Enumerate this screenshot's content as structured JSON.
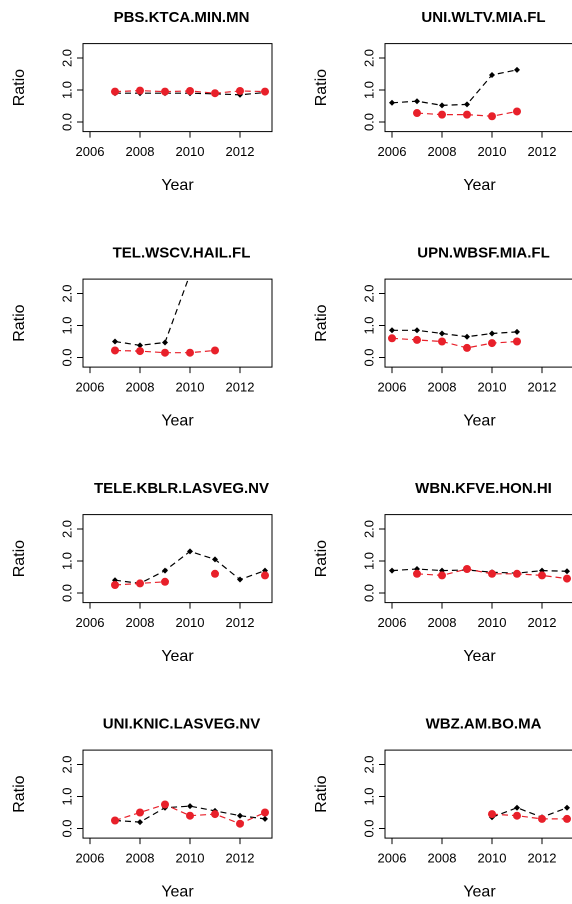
{
  "chart_data": [
    {
      "type": "line",
      "title": "PBS.KTCA.MIN.MN",
      "x_label": "Year",
      "y_label": "Ratio",
      "x": [
        2006,
        2007,
        2008,
        2009,
        2010,
        2011,
        2012,
        2013
      ],
      "series": [
        {
          "color": "#000000",
          "values": [
            null,
            0.9,
            0.9,
            0.9,
            0.9,
            0.88,
            0.85,
            0.92
          ]
        },
        {
          "color": "#e8202a",
          "values": [
            null,
            0.95,
            0.98,
            0.95,
            0.97,
            0.9,
            0.97,
            0.95
          ]
        }
      ],
      "xlim": [
        2005.72,
        2013.28
      ],
      "ylim": [
        -0.3,
        2.45
      ],
      "xticks": [
        2006,
        2008,
        2010,
        2012
      ],
      "yticks": [
        {
          "value": 0,
          "label": "0.0"
        },
        {
          "value": 1,
          "label": "1.0"
        },
        {
          "value": 2,
          "label": "2.0"
        }
      ]
    },
    {
      "type": "line",
      "title": "UNI.WLTV.MIA.FL",
      "x_label": "Year",
      "y_label": "Ratio",
      "x": [
        2006,
        2007,
        2008,
        2009,
        2010,
        2011,
        2012,
        2013
      ],
      "series": [
        {
          "color": "#000000",
          "values": [
            0.6,
            0.65,
            0.52,
            0.55,
            1.47,
            1.63,
            null,
            null
          ]
        },
        {
          "color": "#e8202a",
          "values": [
            null,
            0.28,
            0.23,
            0.23,
            0.18,
            0.33,
            null,
            null
          ]
        }
      ],
      "xlim": [
        2005.72,
        2013.28
      ],
      "ylim": [
        -0.3,
        2.45
      ],
      "xticks": [
        2006,
        2008,
        2010,
        2012
      ],
      "yticks": [
        {
          "value": 0,
          "label": "0.0"
        },
        {
          "value": 1,
          "label": "1.0"
        },
        {
          "value": 2,
          "label": "2.0"
        }
      ]
    },
    {
      "type": "line",
      "title": "TEL.WSCV.HAIL.FL",
      "x_label": "Year",
      "y_label": "Ratio",
      "x": [
        2006,
        2007,
        2008,
        2009,
        2010,
        2011,
        2012,
        2013
      ],
      "series": [
        {
          "color": "#000000",
          "values": [
            null,
            0.5,
            0.38,
            0.47,
            2.6,
            null,
            null,
            null
          ]
        },
        {
          "color": "#e8202a",
          "values": [
            null,
            0.22,
            0.2,
            0.15,
            0.15,
            0.22,
            null,
            null
          ]
        }
      ],
      "xlim": [
        2005.72,
        2013.28
      ],
      "ylim": [
        -0.3,
        2.45
      ],
      "xticks": [
        2006,
        2008,
        2010,
        2012
      ],
      "yticks": [
        {
          "value": 0,
          "label": "0.0"
        },
        {
          "value": 1,
          "label": "1.0"
        },
        {
          "value": 2,
          "label": "2.0"
        }
      ]
    },
    {
      "type": "line",
      "title": "UPN.WBSF.MIA.FL",
      "x_label": "Year",
      "y_label": "Ratio",
      "x": [
        2006,
        2007,
        2008,
        2009,
        2010,
        2011,
        2012,
        2013
      ],
      "series": [
        {
          "color": "#000000",
          "values": [
            0.85,
            0.85,
            0.75,
            0.65,
            0.75,
            0.8,
            null,
            null
          ]
        },
        {
          "color": "#e8202a",
          "values": [
            0.6,
            0.55,
            0.5,
            0.3,
            0.45,
            0.5,
            null,
            null
          ]
        }
      ],
      "xlim": [
        2005.72,
        2013.28
      ],
      "ylim": [
        -0.3,
        2.45
      ],
      "xticks": [
        2006,
        2008,
        2010,
        2012
      ],
      "yticks": [
        {
          "value": 0,
          "label": "0.0"
        },
        {
          "value": 1,
          "label": "1.0"
        },
        {
          "value": 2,
          "label": "2.0"
        }
      ]
    },
    {
      "type": "line",
      "title": "TELE.KBLR.LASVEG.NV",
      "x_label": "Year",
      "y_label": "Ratio",
      "x": [
        2006,
        2007,
        2008,
        2009,
        2010,
        2011,
        2012,
        2013
      ],
      "series": [
        {
          "color": "#000000",
          "values": [
            null,
            0.4,
            0.3,
            0.7,
            1.3,
            1.05,
            0.42,
            0.7
          ]
        },
        {
          "color": "#e8202a",
          "values": [
            null,
            0.25,
            0.3,
            0.35,
            null,
            0.6,
            null,
            0.55
          ]
        }
      ],
      "xlim": [
        2005.72,
        2013.28
      ],
      "ylim": [
        -0.3,
        2.45
      ],
      "xticks": [
        2006,
        2008,
        2010,
        2012
      ],
      "yticks": [
        {
          "value": 0,
          "label": "0.0"
        },
        {
          "value": 1,
          "label": "1.0"
        },
        {
          "value": 2,
          "label": "2.0"
        }
      ]
    },
    {
      "type": "line",
      "title": "WBN.KFVE.HON.HI",
      "x_label": "Year",
      "y_label": "Ratio",
      "x": [
        2006,
        2007,
        2008,
        2009,
        2010,
        2011,
        2012,
        2013
      ],
      "series": [
        {
          "color": "#000000",
          "values": [
            0.7,
            0.75,
            0.7,
            0.72,
            0.65,
            0.62,
            0.7,
            0.68
          ]
        },
        {
          "color": "#e8202a",
          "values": [
            null,
            0.6,
            0.55,
            0.75,
            0.6,
            0.6,
            0.55,
            0.45
          ]
        }
      ],
      "xlim": [
        2005.72,
        2013.28
      ],
      "ylim": [
        -0.3,
        2.45
      ],
      "xticks": [
        2006,
        2008,
        2010,
        2012
      ],
      "yticks": [
        {
          "value": 0,
          "label": "0.0"
        },
        {
          "value": 1,
          "label": "1.0"
        },
        {
          "value": 2,
          "label": "2.0"
        }
      ]
    },
    {
      "type": "line",
      "title": "UNI.KNIC.LASVEG.NV",
      "x_label": "Year",
      "y_label": "Ratio",
      "x": [
        2006,
        2007,
        2008,
        2009,
        2010,
        2011,
        2012,
        2013
      ],
      "series": [
        {
          "color": "#000000",
          "values": [
            null,
            0.25,
            0.2,
            0.65,
            0.7,
            0.55,
            0.4,
            0.3
          ]
        },
        {
          "color": "#e8202a",
          "values": [
            null,
            0.25,
            0.5,
            0.75,
            0.4,
            0.45,
            0.15,
            0.5
          ]
        }
      ],
      "xlim": [
        2005.72,
        2013.28
      ],
      "ylim": [
        -0.3,
        2.45
      ],
      "xticks": [
        2006,
        2008,
        2010,
        2012
      ],
      "yticks": [
        {
          "value": 0,
          "label": "0.0"
        },
        {
          "value": 1,
          "label": "1.0"
        },
        {
          "value": 2,
          "label": "2.0"
        }
      ]
    },
    {
      "type": "line",
      "title": "WBZ.AM.BO.MA",
      "x_label": "Year",
      "y_label": "Ratio",
      "x": [
        2006,
        2007,
        2008,
        2009,
        2010,
        2011,
        2012,
        2013
      ],
      "series": [
        {
          "color": "#000000",
          "values": [
            null,
            null,
            null,
            null,
            0.35,
            0.65,
            0.35,
            0.65
          ]
        },
        {
          "color": "#e8202a",
          "values": [
            null,
            null,
            null,
            null,
            0.45,
            0.4,
            0.3,
            0.3
          ]
        }
      ],
      "xlim": [
        2005.72,
        2013.28
      ],
      "ylim": [
        -0.3,
        2.45
      ],
      "xticks": [
        2006,
        2008,
        2010,
        2012
      ],
      "yticks": [
        {
          "value": 0,
          "label": "0.0"
        },
        {
          "value": 1,
          "label": "1.0"
        },
        {
          "value": 2,
          "label": "2.0"
        }
      ]
    }
  ]
}
